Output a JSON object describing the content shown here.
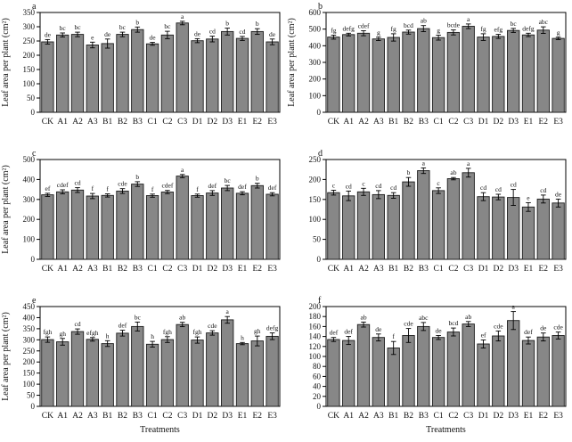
{
  "figure": {
    "background": "#ffffff",
    "bar_fill": "#878787",
    "bar_stroke": "#1c1c1c",
    "axis_color": "#000000",
    "xlabel": "Treatments",
    "ylabel": "Leaf area per plant (cm²)"
  },
  "chart_data": [
    {
      "type": "bar",
      "panel": "a",
      "title": "",
      "xlabel": "",
      "ylabel": "Leaf area per plant (cm²)",
      "show_ylabel": true,
      "show_xlabel": false,
      "ylim": [
        0,
        350
      ],
      "ytick_step": 50,
      "grid": false,
      "legend": "none",
      "categories": [
        "CK",
        "A1",
        "A2",
        "A3",
        "B1",
        "B2",
        "B3",
        "C1",
        "C2",
        "C3",
        "D1",
        "D2",
        "D3",
        "E1",
        "E2",
        "E3"
      ],
      "values": [
        247,
        271,
        273,
        236,
        241,
        273,
        290,
        240,
        271,
        313,
        251,
        257,
        283,
        259,
        283,
        247
      ],
      "errors": [
        8,
        7,
        8,
        10,
        16,
        8,
        9,
        5,
        13,
        6,
        7,
        10,
        12,
        7,
        10,
        10
      ],
      "letters": [
        "de",
        "bc",
        "bc",
        "e",
        "de",
        "bc",
        "b",
        "de",
        "bc",
        "a",
        "de",
        "cd",
        "b",
        "cd",
        "b",
        "de"
      ]
    },
    {
      "type": "bar",
      "panel": "b",
      "title": "",
      "xlabel": "",
      "ylabel": "Leaf area per plant (cm²)",
      "show_ylabel": true,
      "show_xlabel": false,
      "ylim": [
        0,
        600
      ],
      "ytick_step": 100,
      "grid": false,
      "legend": "none",
      "categories": [
        "CK",
        "A1",
        "A2",
        "A3",
        "B1",
        "B2",
        "B3",
        "C1",
        "C2",
        "C3",
        "D1",
        "D2",
        "D3",
        "E1",
        "E2",
        "E3"
      ],
      "values": [
        452,
        467,
        475,
        441,
        450,
        482,
        503,
        449,
        480,
        517,
        452,
        456,
        492,
        465,
        494,
        444
      ],
      "errors": [
        12,
        8,
        15,
        10,
        22,
        12,
        18,
        15,
        15,
        14,
        20,
        12,
        12,
        10,
        20,
        7
      ],
      "letters": [
        "fg",
        "defg",
        "cdef",
        "g",
        "fg",
        "bcd",
        "ab",
        "g",
        "bcde",
        "a",
        "fg",
        "efg",
        "bc",
        "defg",
        "abc",
        "g"
      ]
    },
    {
      "type": "bar",
      "panel": "c",
      "title": "",
      "xlabel": "",
      "ylabel": "Leaf area per plant (cm²)",
      "show_ylabel": true,
      "show_xlabel": false,
      "ylim": [
        0,
        500
      ],
      "ytick_step": 100,
      "grid": false,
      "legend": "none",
      "categories": [
        "CK",
        "A1",
        "A2",
        "A3",
        "B1",
        "B2",
        "B3",
        "C1",
        "C2",
        "C3",
        "D1",
        "D2",
        "D3",
        "E1",
        "E2",
        "E3"
      ],
      "values": [
        323,
        338,
        347,
        317,
        320,
        342,
        377,
        319,
        337,
        417,
        319,
        332,
        357,
        331,
        369,
        326
      ],
      "errors": [
        8,
        10,
        12,
        13,
        8,
        12,
        12,
        8,
        8,
        8,
        8,
        12,
        13,
        8,
        12,
        8
      ],
      "letters": [
        "ef",
        "cdef",
        "cd",
        "f",
        "f",
        "cde",
        "b",
        "f",
        "cdef",
        "a",
        "f",
        "def",
        "bc",
        "def",
        "b",
        "def"
      ]
    },
    {
      "type": "bar",
      "panel": "d",
      "title": "",
      "xlabel": "",
      "ylabel": "",
      "show_ylabel": false,
      "show_xlabel": false,
      "ylim": [
        0,
        250
      ],
      "ytick_step": 50,
      "grid": false,
      "legend": "none",
      "categories": [
        "CK",
        "A1",
        "A2",
        "A3",
        "B1",
        "B2",
        "B3",
        "C1",
        "C2",
        "C3",
        "D1",
        "D2",
        "D3",
        "E1",
        "E2",
        "E3"
      ],
      "values": [
        167,
        159,
        169,
        162,
        160,
        194,
        222,
        172,
        202,
        217,
        157,
        156,
        155,
        131,
        151,
        141
      ],
      "errors": [
        6,
        12,
        9,
        10,
        7,
        11,
        7,
        7,
        3,
        11,
        10,
        7,
        20,
        11,
        10,
        10
      ],
      "letters": [
        "c",
        "cd",
        "c",
        "cd",
        "cd",
        "b",
        "a",
        "c",
        "ab",
        "a",
        "cd",
        "cd",
        "cd",
        "e",
        "cd",
        "de"
      ]
    },
    {
      "type": "bar",
      "panel": "e",
      "title": "",
      "xlabel": "Treatments",
      "ylabel": "Leaf area per plant (cm²)",
      "show_ylabel": true,
      "show_xlabel": true,
      "ylim": [
        0,
        450
      ],
      "ytick_step": 50,
      "grid": false,
      "legend": "none",
      "categories": [
        "CK",
        "A1",
        "A2",
        "A3",
        "B1",
        "B2",
        "B3",
        "C1",
        "C2",
        "C3",
        "D1",
        "D2",
        "D3",
        "E1",
        "E2",
        "E3"
      ],
      "values": [
        301,
        291,
        337,
        302,
        283,
        330,
        360,
        280,
        301,
        369,
        299,
        331,
        390,
        283,
        295,
        316
      ],
      "errors": [
        12,
        15,
        12,
        8,
        13,
        13,
        20,
        13,
        13,
        10,
        14,
        10,
        15,
        5,
        22,
        15
      ],
      "letters": [
        "fgh",
        "gh",
        "cd",
        "efgh",
        "h",
        "def",
        "bc",
        "h",
        "fgh",
        "ab",
        "fgh",
        "cde",
        "a",
        "h",
        "gh",
        "defg"
      ]
    },
    {
      "type": "bar",
      "panel": "f",
      "title": "",
      "xlabel": "Treatments",
      "ylabel": "",
      "show_ylabel": false,
      "show_xlabel": true,
      "ylim": [
        0,
        200
      ],
      "ytick_step": 20,
      "grid": false,
      "legend": "none",
      "categories": [
        "CK",
        "A1",
        "A2",
        "A3",
        "B1",
        "B2",
        "B3",
        "C1",
        "C2",
        "C3",
        "D1",
        "D2",
        "D3",
        "E1",
        "E2",
        "E3"
      ],
      "values": [
        134,
        132,
        164,
        138,
        117,
        142,
        160,
        138,
        149,
        165,
        125,
        141,
        172,
        132,
        139,
        142
      ],
      "errors": [
        4,
        8,
        5,
        7,
        13,
        14,
        8,
        4,
        8,
        5,
        8,
        10,
        18,
        7,
        8,
        7
      ],
      "letters": [
        "def",
        "def",
        "ab",
        "de",
        "f",
        "cde",
        "abc",
        "de",
        "bcd",
        "ab",
        "ef",
        "cde",
        "a",
        "def",
        "de",
        "cde"
      ]
    }
  ]
}
